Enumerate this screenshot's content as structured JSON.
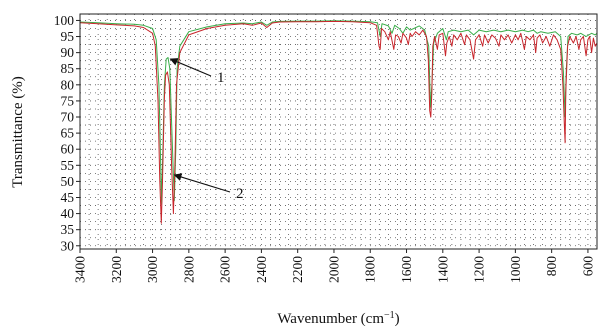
{
  "chart_data": {
    "type": "line",
    "xlabel": "Wavenumber (cm",
    "xlabel_sup": "−1",
    "xlabel_end": ")",
    "ylabel": "Transmittance (%)",
    "xlim": [
      3400,
      550
    ],
    "x_reversed": true,
    "ylim": [
      29,
      102
    ],
    "x_ticks": [
      3400,
      3200,
      3000,
      2800,
      2600,
      2400,
      2200,
      2000,
      1800,
      1600,
      1400,
      1200,
      1000,
      800,
      600
    ],
    "y_ticks": [
      30,
      35,
      40,
      45,
      50,
      55,
      60,
      65,
      70,
      75,
      80,
      85,
      90,
      95,
      100
    ],
    "grid": true,
    "grid_style": "dotted",
    "series": [
      {
        "color": "#3aae4a",
        "points": [
          [
            3400,
            99.5
          ],
          [
            3300,
            99.3
          ],
          [
            3200,
            99.0
          ],
          [
            3100,
            98.8
          ],
          [
            3050,
            98.5
          ],
          [
            3000,
            97.5
          ],
          [
            2980,
            94.0
          ],
          [
            2965,
            80.0
          ],
          [
            2955,
            55.0
          ],
          [
            2950,
            43.0
          ],
          [
            2945,
            55.0
          ],
          [
            2935,
            80.0
          ],
          [
            2925,
            88.0
          ],
          [
            2915,
            88.5
          ],
          [
            2905,
            85.0
          ],
          [
            2890,
            60.0
          ],
          [
            2880,
            44.0
          ],
          [
            2872,
            60.0
          ],
          [
            2865,
            85.0
          ],
          [
            2850,
            92.0
          ],
          [
            2800,
            96.5
          ],
          [
            2700,
            98.0
          ],
          [
            2600,
            99.0
          ],
          [
            2500,
            99.2
          ],
          [
            2450,
            99.0
          ],
          [
            2400,
            99.5
          ],
          [
            2370,
            98.5
          ],
          [
            2340,
            99.5
          ],
          [
            2300,
            99.7
          ],
          [
            2200,
            99.8
          ],
          [
            2100,
            99.8
          ],
          [
            2000,
            99.9
          ],
          [
            1900,
            99.8
          ],
          [
            1800,
            99.6
          ],
          [
            1760,
            99.3
          ],
          [
            1745,
            95.0
          ],
          [
            1735,
            99.0
          ],
          [
            1700,
            98.3
          ],
          [
            1680,
            96.0
          ],
          [
            1665,
            98.5
          ],
          [
            1640,
            97.5
          ],
          [
            1620,
            96.0
          ],
          [
            1600,
            98.0
          ],
          [
            1580,
            97.0
          ],
          [
            1560,
            97.5
          ],
          [
            1530,
            98.3
          ],
          [
            1500,
            97.0
          ],
          [
            1478,
            92.0
          ],
          [
            1468,
            73.0
          ],
          [
            1460,
            80.0
          ],
          [
            1450,
            93.0
          ],
          [
            1430,
            96.0
          ],
          [
            1400,
            97.5
          ],
          [
            1380,
            94.0
          ],
          [
            1370,
            96.5
          ],
          [
            1340,
            97.0
          ],
          [
            1300,
            96.5
          ],
          [
            1260,
            97.0
          ],
          [
            1230,
            95.5
          ],
          [
            1200,
            97.0
          ],
          [
            1160,
            96.5
          ],
          [
            1120,
            97.0
          ],
          [
            1080,
            96.5
          ],
          [
            1040,
            97.0
          ],
          [
            1000,
            96.5
          ],
          [
            960,
            97.0
          ],
          [
            930,
            96.5
          ],
          [
            900,
            97.0
          ],
          [
            880,
            96.0
          ],
          [
            860,
            96.5
          ],
          [
            820,
            96.0
          ],
          [
            780,
            96.5
          ],
          [
            750,
            95.0
          ],
          [
            735,
            84.0
          ],
          [
            726,
            70.0
          ],
          [
            720,
            84.0
          ],
          [
            710,
            95.0
          ],
          [
            690,
            96.0
          ],
          [
            660,
            95.5
          ],
          [
            640,
            96.0
          ],
          [
            610,
            95.0
          ],
          [
            580,
            96.0
          ],
          [
            560,
            95.5
          ],
          [
            550,
            96.0
          ]
        ]
      },
      {
        "color": "#c8262c",
        "points": [
          [
            3400,
            99.3
          ],
          [
            3300,
            99.0
          ],
          [
            3200,
            98.6
          ],
          [
            3100,
            98.3
          ],
          [
            3050,
            97.8
          ],
          [
            3000,
            96.0
          ],
          [
            2985,
            92.0
          ],
          [
            2970,
            75.0
          ],
          [
            2960,
            50.0
          ],
          [
            2952,
            37.0
          ],
          [
            2945,
            50.0
          ],
          [
            2935,
            76.0
          ],
          [
            2928,
            83.0
          ],
          [
            2918,
            84.0
          ],
          [
            2908,
            80.0
          ],
          [
            2895,
            55.0
          ],
          [
            2885,
            40.0
          ],
          [
            2877,
            55.0
          ],
          [
            2868,
            80.0
          ],
          [
            2850,
            90.0
          ],
          [
            2800,
            95.5
          ],
          [
            2700,
            97.5
          ],
          [
            2600,
            98.5
          ],
          [
            2500,
            99.0
          ],
          [
            2450,
            98.5
          ],
          [
            2400,
            99.2
          ],
          [
            2370,
            97.8
          ],
          [
            2340,
            99.2
          ],
          [
            2300,
            99.5
          ],
          [
            2200,
            99.6
          ],
          [
            2100,
            99.6
          ],
          [
            2000,
            99.7
          ],
          [
            1900,
            99.6
          ],
          [
            1800,
            99.3
          ],
          [
            1765,
            98.5
          ],
          [
            1752,
            92.0
          ],
          [
            1745,
            91.0
          ],
          [
            1738,
            97.5
          ],
          [
            1720,
            96.5
          ],
          [
            1700,
            94.0
          ],
          [
            1690,
            96.5
          ],
          [
            1670,
            91.0
          ],
          [
            1660,
            95.5
          ],
          [
            1645,
            95.0
          ],
          [
            1630,
            93.0
          ],
          [
            1620,
            96.0
          ],
          [
            1600,
            94.5
          ],
          [
            1590,
            92.5
          ],
          [
            1580,
            96.0
          ],
          [
            1570,
            95.0
          ],
          [
            1550,
            96.5
          ],
          [
            1530,
            95.5
          ],
          [
            1510,
            97.0
          ],
          [
            1490,
            95.0
          ],
          [
            1480,
            88.0
          ],
          [
            1472,
            72.0
          ],
          [
            1466,
            70.0
          ],
          [
            1460,
            78.0
          ],
          [
            1455,
            92.0
          ],
          [
            1445,
            95.0
          ],
          [
            1430,
            91.0
          ],
          [
            1420,
            95.5
          ],
          [
            1400,
            96.0
          ],
          [
            1385,
            89.0
          ],
          [
            1378,
            93.0
          ],
          [
            1365,
            95.0
          ],
          [
            1350,
            92.0
          ],
          [
            1340,
            95.5
          ],
          [
            1320,
            94.0
          ],
          [
            1300,
            96.0
          ],
          [
            1280,
            92.5
          ],
          [
            1270,
            95.5
          ],
          [
            1250,
            94.0
          ],
          [
            1230,
            88.0
          ],
          [
            1220,
            94.0
          ],
          [
            1200,
            95.5
          ],
          [
            1180,
            92.0
          ],
          [
            1170,
            95.5
          ],
          [
            1150,
            93.0
          ],
          [
            1130,
            95.5
          ],
          [
            1110,
            94.5
          ],
          [
            1090,
            92.0
          ],
          [
            1080,
            95.5
          ],
          [
            1060,
            94.0
          ],
          [
            1040,
            95.5
          ],
          [
            1020,
            93.0
          ],
          [
            1000,
            95.5
          ],
          [
            985,
            94.0
          ],
          [
            970,
            96.0
          ],
          [
            950,
            91.0
          ],
          [
            940,
            95.0
          ],
          [
            920,
            94.0
          ],
          [
            900,
            95.5
          ],
          [
            888,
            90.0
          ],
          [
            880,
            94.5
          ],
          [
            865,
            95.5
          ],
          [
            850,
            93.0
          ],
          [
            830,
            95.0
          ],
          [
            810,
            92.0
          ],
          [
            790,
            95.5
          ],
          [
            770,
            94.0
          ],
          [
            750,
            91.0
          ],
          [
            738,
            80.0
          ],
          [
            730,
            68.0
          ],
          [
            726,
            62.0
          ],
          [
            722,
            78.0
          ],
          [
            712,
            92.0
          ],
          [
            700,
            95.0
          ],
          [
            680,
            93.0
          ],
          [
            665,
            95.0
          ],
          [
            650,
            91.0
          ],
          [
            640,
            94.0
          ],
          [
            625,
            95.0
          ],
          [
            610,
            89.0
          ],
          [
            600,
            94.0
          ],
          [
            590,
            95.0
          ],
          [
            580,
            90.0
          ],
          [
            570,
            94.5
          ],
          [
            560,
            92.0
          ],
          [
            550,
            93.0
          ]
        ]
      }
    ],
    "annotations": [
      {
        "label": "1",
        "target_x": 2912,
        "target_y": 88
      },
      {
        "label": "2",
        "target_x": 2890,
        "target_y": 52
      }
    ]
  }
}
